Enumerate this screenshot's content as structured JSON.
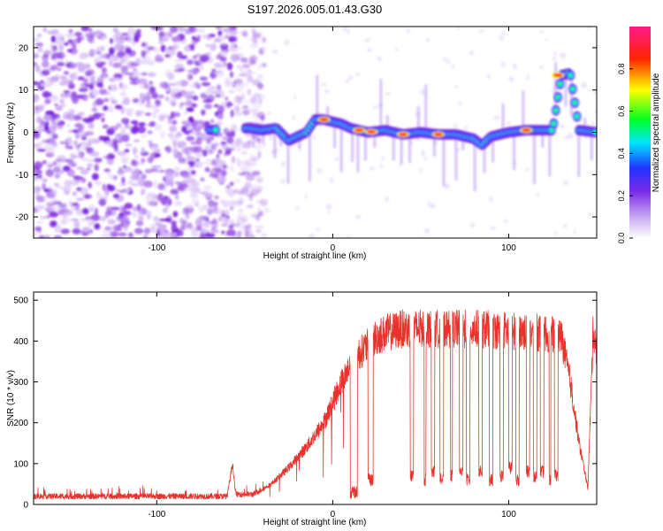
{
  "title": "S197.2026.005.01.43.G30",
  "chart_data": [
    {
      "type": "heatmap",
      "name": "spectrogram",
      "xlabel": "Height of straight line (km)",
      "ylabel": "Frequency (Hz)",
      "xlim": [
        -170,
        150
      ],
      "ylim": [
        -25,
        25
      ],
      "xticks": [
        -100,
        0,
        100
      ],
      "xtick_labels": [
        "-100",
        "0",
        "100"
      ],
      "yticks": [
        -20,
        -10,
        0,
        10,
        20
      ],
      "ytick_labels": [
        "-20",
        "-10",
        "0",
        "10",
        "20"
      ],
      "ridge": {
        "description": "dominant frequency track (km, Hz)",
        "points": [
          [
            -70,
            0.5
          ],
          [
            -48,
            1
          ],
          [
            -40,
            0.5
          ],
          [
            -32,
            1
          ],
          [
            -25,
            -2
          ],
          [
            -20,
            -1
          ],
          [
            -15,
            0
          ],
          [
            -10,
            3
          ],
          [
            -5,
            3
          ],
          [
            0,
            2.5
          ],
          [
            5,
            2
          ],
          [
            10,
            1
          ],
          [
            20,
            0
          ],
          [
            30,
            0.5
          ],
          [
            40,
            -0.5
          ],
          [
            50,
            0
          ],
          [
            60,
            -0.5
          ],
          [
            70,
            -0.5
          ],
          [
            80,
            -1.5
          ],
          [
            85,
            -3
          ],
          [
            90,
            -1
          ],
          [
            100,
            0
          ],
          [
            110,
            0.5
          ],
          [
            120,
            0.5
          ],
          [
            125,
            0.5
          ],
          [
            130,
            13.5
          ],
          [
            135,
            14
          ],
          [
            140,
            0.5
          ],
          [
            150,
            0
          ]
        ]
      },
      "noise_region_km": [
        -170,
        -45
      ]
    },
    {
      "type": "colorbar",
      "label": "Normalized spectral amplitude",
      "range": [
        0,
        1
      ],
      "ticks": [
        0,
        0.2,
        0.4,
        0.6,
        0.8
      ],
      "tick_labels": [
        "0.0",
        "0.2",
        "0.4",
        "0.6",
        "0.8"
      ],
      "colors": [
        "#ffffff",
        "#c9a8f0",
        "#7a2be8",
        "#2233ff",
        "#00e5ff",
        "#00ff22",
        "#ffff00",
        "#ff2200",
        "#ff1a8c"
      ]
    },
    {
      "type": "line",
      "name": "snr",
      "xlabel": "Height of straight line (km)",
      "ylabel": "SNR (10 * v/v)",
      "xlim": [
        -170,
        150
      ],
      "ylim": [
        0,
        520
      ],
      "xticks": [
        -100,
        0,
        100
      ],
      "xtick_labels": [
        "-100",
        "0",
        "100"
      ],
      "yticks": [
        0,
        100,
        200,
        300,
        400,
        500
      ],
      "ytick_labels": [
        "0",
        "100",
        "200",
        "300",
        "400",
        "500"
      ],
      "color": "#e8332d",
      "envelope": [
        [
          -170,
          20
        ],
        [
          -60,
          20
        ],
        [
          -57,
          100
        ],
        [
          -55,
          25
        ],
        [
          -45,
          25
        ],
        [
          -35,
          50
        ],
        [
          -25,
          90
        ],
        [
          -15,
          140
        ],
        [
          -5,
          200
        ],
        [
          0,
          250
        ],
        [
          5,
          300
        ],
        [
          10,
          340
        ],
        [
          15,
          370
        ],
        [
          20,
          390
        ],
        [
          25,
          410
        ],
        [
          30,
          420
        ],
        [
          40,
          430
        ],
        [
          60,
          430
        ],
        [
          80,
          430
        ],
        [
          100,
          425
        ],
        [
          120,
          420
        ],
        [
          130,
          410
        ],
        [
          135,
          300
        ],
        [
          140,
          150
        ],
        [
          145,
          40
        ],
        [
          148,
          430
        ],
        [
          150,
          380
        ]
      ],
      "dropouts": [
        [
          10,
          14,
          30
        ],
        [
          20,
          23,
          60
        ],
        [
          44,
          46,
          70
        ],
        [
          52,
          53,
          60
        ],
        [
          56,
          58,
          80
        ],
        [
          61,
          63,
          60
        ],
        [
          67,
          68,
          70
        ],
        [
          72,
          74,
          80
        ],
        [
          76,
          78,
          60
        ],
        [
          83,
          85,
          80
        ],
        [
          89,
          91,
          60
        ],
        [
          95,
          97,
          70
        ],
        [
          100,
          102,
          90
        ],
        [
          104,
          106,
          60
        ],
        [
          110,
          112,
          80
        ],
        [
          114,
          116,
          70
        ],
        [
          118,
          120,
          80
        ],
        [
          123,
          124,
          60
        ],
        [
          126,
          128,
          70
        ]
      ]
    }
  ]
}
